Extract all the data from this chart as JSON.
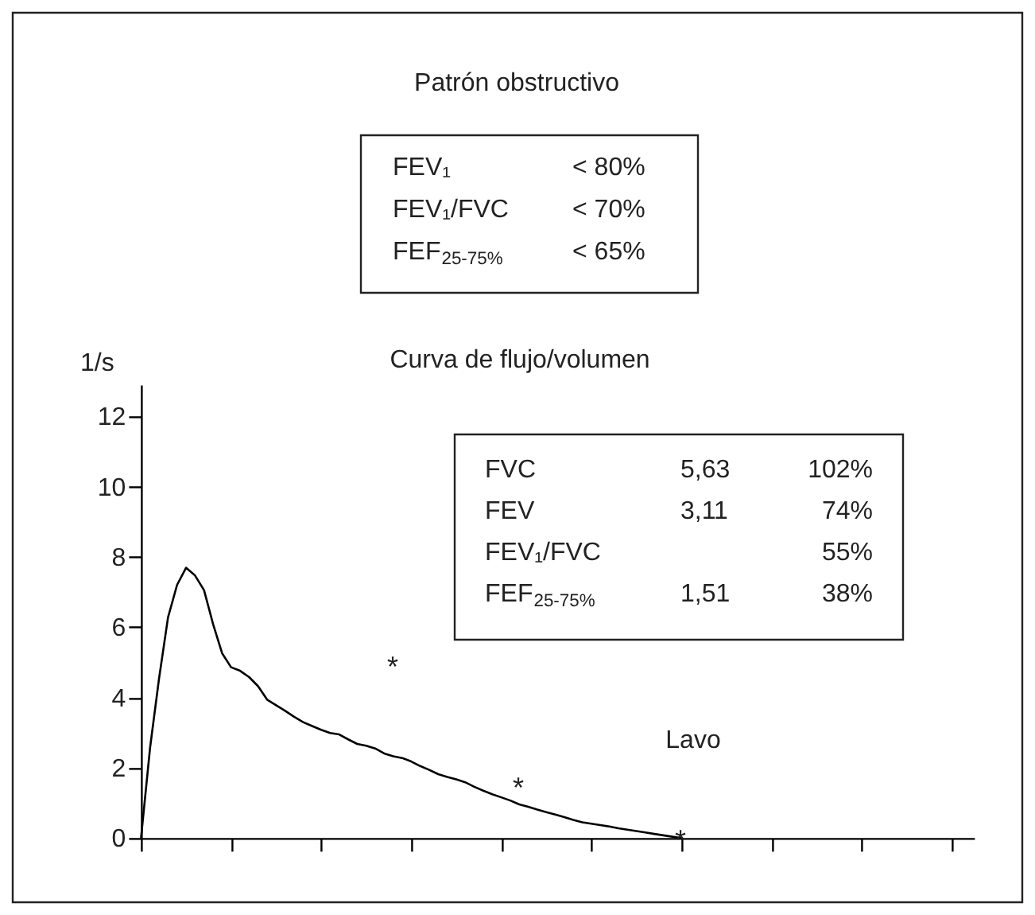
{
  "chart_data": {
    "type": "line",
    "title": "Patrón obstructivo",
    "subtitle": "Curva de flujo/volumen",
    "ylabel": "1/s",
    "categories": [
      null,
      null,
      null,
      null,
      null,
      null,
      null,
      null,
      null,
      null,
      null,
      null,
      null,
      null,
      null,
      null,
      null,
      null,
      null,
      null,
      null,
      null,
      null,
      null,
      null,
      null,
      null,
      null,
      null,
      null,
      null,
      null,
      null,
      null,
      null,
      null,
      null,
      null,
      null,
      null,
      null,
      null,
      null,
      null,
      null,
      null,
      null,
      null,
      null,
      null,
      null,
      null,
      null,
      null,
      null,
      null,
      null,
      null,
      null,
      null,
      null,
      null,
      null,
      null,
      null,
      null,
      null,
      null,
      null,
      null,
      null,
      null,
      null,
      null,
      null,
      null,
      null,
      null,
      null,
      null,
      null,
      null,
      null,
      null,
      null,
      null,
      null,
      null,
      null,
      null,
      null,
      null,
      null
    ],
    "series": [
      {
        "color": "#000000",
        "values": [
          0,
          2.56,
          4.54,
          6.28,
          7.2,
          7.69,
          7.47,
          7.05,
          6.09,
          5.26,
          4.86,
          4.76,
          4.58,
          4.32,
          3.94,
          3.78,
          3.62,
          3.45,
          3.3,
          3.19,
          3.08,
          2.99,
          2.95,
          2.81,
          2.68,
          2.63,
          2.55,
          2.41,
          2.33,
          2.28,
          2.18,
          2.05,
          1.94,
          1.82,
          1.74,
          1.67,
          1.59,
          1.46,
          1.35,
          1.25,
          1.16,
          1.07,
          0.96,
          0.89,
          0.81,
          0.74,
          0.67,
          0.6,
          0.52,
          0.45,
          0.41,
          0.37,
          0.33,
          0.28,
          0.24,
          0.2,
          0.16,
          0.12,
          0.08,
          0.04,
          0,
          null,
          null,
          null,
          null,
          null,
          null,
          null,
          null,
          null,
          null,
          null,
          null,
          null,
          null,
          null,
          null,
          null,
          null,
          null,
          null,
          null,
          null,
          null,
          null,
          null,
          null,
          null,
          null,
          null,
          null,
          null,
          null
        ]
      }
    ],
    "ylim": [
      0,
      12.9
    ],
    "yticks": [
      0,
      2,
      4,
      6,
      8,
      10,
      12
    ],
    "tick_labels": "y",
    "grid": false,
    "legend": false,
    "marker": "none",
    "line_style": "solid",
    "annotations": [
      "FEV₁",
      "< 80%",
      "FEV₁/FVC",
      "< 70%",
      "FEF$_{25-75%}$",
      "< 65%",
      "FVC",
      "5,63",
      "102%",
      "FEV",
      "3,11",
      "74%",
      "FEV₁/FVC",
      "55%",
      "FEF$_{25-75%}$",
      "1,51",
      "38%",
      "Lavo",
      "*",
      "*",
      "*"
    ]
  }
}
